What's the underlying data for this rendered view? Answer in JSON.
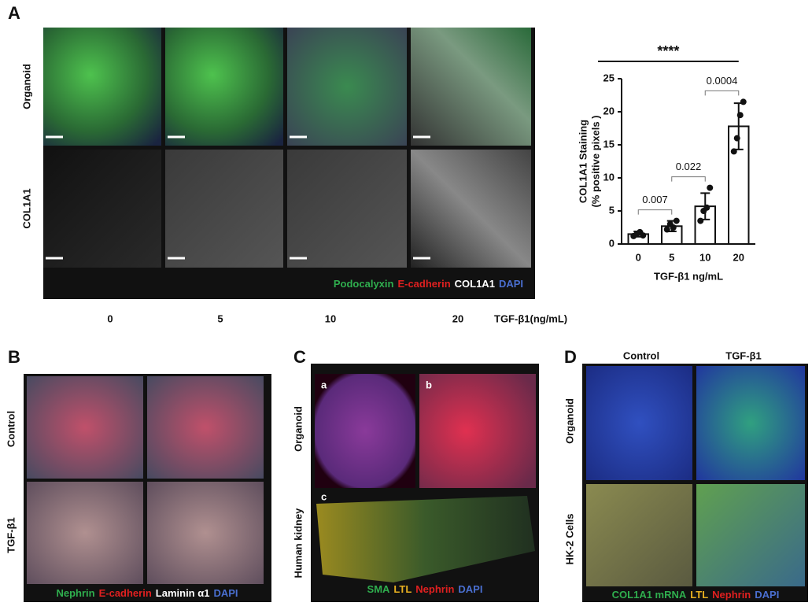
{
  "panels": {
    "A": {
      "label": "A",
      "row_labels": [
        "Organoid",
        "COL1A1"
      ],
      "legend": [
        {
          "text": "Podocalyxin",
          "color": "#2fae4e"
        },
        {
          "text": "E-cadherin",
          "color": "#e02020"
        },
        {
          "text": "COL1A1",
          "color": "#ffffff"
        },
        {
          "text": "DAPI",
          "color": "#4a6fd0"
        }
      ],
      "doses": [
        "0",
        "5",
        "10",
        "20"
      ],
      "dose_axis": "TGF-β1(ng/mL)"
    },
    "B": {
      "label": "B",
      "row_labels": [
        "Control",
        "TGF-β1"
      ],
      "legend": [
        {
          "text": "Nephrin",
          "color": "#2fae4e"
        },
        {
          "text": "E-cadherin",
          "color": "#e02020"
        },
        {
          "text": "Laminin α1",
          "color": "#ffffff"
        },
        {
          "text": "DAPI",
          "color": "#4a6fd0"
        }
      ]
    },
    "C": {
      "label": "C",
      "row_labels": [
        "Organoid",
        "Human kidney"
      ],
      "tile_labels": [
        "a",
        "b",
        "c"
      ],
      "legend": [
        {
          "text": "SMA",
          "color": "#2fae4e"
        },
        {
          "text": "LTL",
          "color": "#e8b020"
        },
        {
          "text": "Nephrin",
          "color": "#e02020"
        },
        {
          "text": "DAPI",
          "color": "#4a6fd0"
        }
      ]
    },
    "D": {
      "label": "D",
      "column_labels": [
        "Control",
        "TGF-β1"
      ],
      "row_labels": [
        "Organoid",
        "HK-2 Cells"
      ],
      "legend": [
        {
          "text": "COL1A1 mRNA",
          "color": "#2fae4e"
        },
        {
          "text": "LTL",
          "color": "#e8b020"
        },
        {
          "text": "Nephrin",
          "color": "#e02020"
        },
        {
          "text": "DAPI",
          "color": "#4a6fd0"
        }
      ]
    }
  },
  "chart_data": {
    "type": "bar",
    "ylabel": [
      "COL1A1 Staining",
      "(% positive pixels )"
    ],
    "xlabel": "TGF-β1 ng/mL",
    "categories": [
      "0",
      "5",
      "10",
      "20"
    ],
    "values": [
      1.5,
      2.7,
      5.7,
      17.8
    ],
    "errors": [
      0.4,
      0.8,
      2.0,
      3.5
    ],
    "points": [
      [
        1.2,
        1.5,
        1.8,
        1.3
      ],
      [
        2.2,
        3.0,
        2.5,
        3.5
      ],
      [
        3.5,
        5.0,
        5.5,
        8.5
      ],
      [
        14.0,
        16.0,
        19.5,
        21.5
      ]
    ],
    "comparisons": [
      "0.007",
      "0.022",
      "0.0004"
    ],
    "significance": "****",
    "color": "#ffffff",
    "ylim": [
      0,
      25
    ],
    "yticks": [
      0,
      5,
      10,
      15,
      20,
      25
    ]
  }
}
